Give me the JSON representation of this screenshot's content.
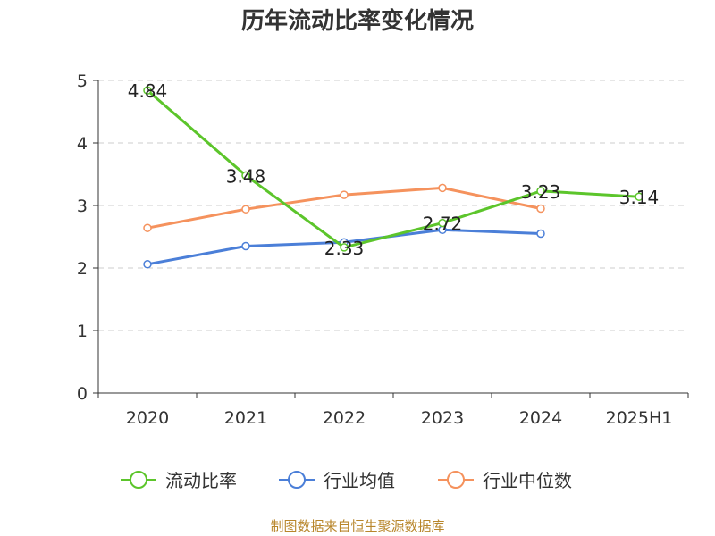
{
  "chart_data": {
    "type": "line",
    "title": "历年流动比率变化情况",
    "categories": [
      "2020",
      "2021",
      "2022",
      "2023",
      "2024",
      "2025H1"
    ],
    "ylim": [
      0,
      5
    ],
    "yticks": [
      0,
      1,
      2,
      3,
      4,
      5
    ],
    "grid": true,
    "legend_position": "bottom",
    "series": [
      {
        "name": "流动比率",
        "color": "#5cc52b",
        "values": [
          4.84,
          3.48,
          2.33,
          2.72,
          3.23,
          3.14
        ],
        "labels": [
          "4.84",
          "3.48",
          "2.33",
          "2.72",
          "3.23",
          "3.14"
        ]
      },
      {
        "name": "行业均值",
        "color": "#4b7fd8",
        "values": [
          2.06,
          2.35,
          2.41,
          2.61,
          2.55,
          null
        ]
      },
      {
        "name": "行业中位数",
        "color": "#f5925d",
        "values": [
          2.64,
          2.94,
          3.17,
          3.28,
          2.95,
          null
        ]
      }
    ]
  },
  "source": "制图数据来自恒生聚源数据库"
}
